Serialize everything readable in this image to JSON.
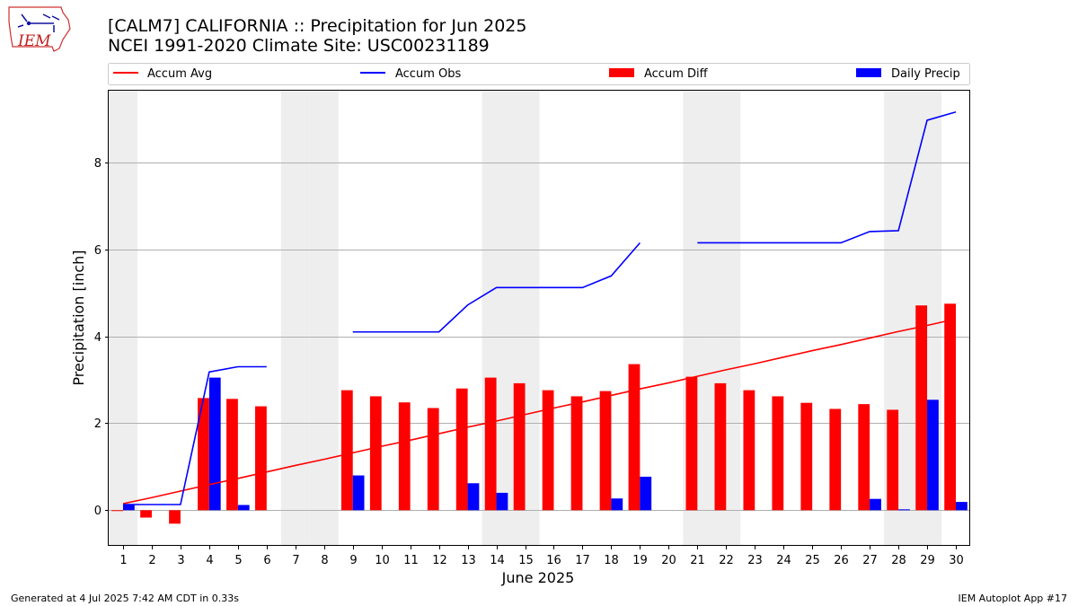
{
  "logo": {
    "text": "IEM"
  },
  "footer": {
    "left": "Generated at 4 Jul 2025 7:42 AM CDT in 0.33s",
    "right": "IEM Autoplot App #17"
  },
  "chart_data": {
    "type": "bar",
    "title": "[CALM7] CALIFORNIA :: Precipitation for Jun 2025",
    "subtitle": "NCEI 1991-2020 Climate Site: USC00231189",
    "xlabel": "June 2025",
    "ylabel": "Precipitation [inch]",
    "xlim": [
      0.5,
      30.5
    ],
    "ylim": [
      -0.82,
      9.65
    ],
    "yticks": [
      0,
      2,
      4,
      6,
      8
    ],
    "grid": "y",
    "legend_location": "top",
    "colors": {
      "accum_avg": "#ff0000",
      "accum_obs": "#0000ff",
      "accum_diff": "#ff0000",
      "daily_precip": "#0000ff",
      "weekend_shade": "#eeeeee"
    },
    "legend": [
      "Accum Avg",
      "Accum Obs",
      "Accum Diff",
      "Daily Precip"
    ],
    "weekend_days": [
      1,
      7,
      8,
      14,
      15,
      21,
      22,
      28,
      29
    ],
    "days": [
      1,
      2,
      3,
      4,
      5,
      6,
      7,
      8,
      9,
      10,
      11,
      12,
      13,
      14,
      15,
      16,
      17,
      18,
      19,
      20,
      21,
      22,
      23,
      24,
      25,
      26,
      27,
      28,
      29,
      30
    ],
    "series": [
      {
        "name": "Accum Avg",
        "kind": "line",
        "values": [
          0.15,
          0.29,
          0.44,
          0.59,
          0.73,
          0.88,
          1.03,
          1.17,
          1.32,
          1.47,
          1.61,
          1.76,
          1.91,
          2.05,
          2.2,
          2.35,
          2.49,
          2.64,
          2.79,
          2.93,
          3.08,
          3.23,
          3.37,
          3.52,
          3.67,
          3.81,
          3.96,
          4.11,
          4.25,
          4.4
        ]
      },
      {
        "name": "Accum Obs",
        "kind": "line",
        "values": [
          0.13,
          0.13,
          0.13,
          3.18,
          3.3,
          3.3,
          null,
          null,
          4.1,
          4.1,
          4.1,
          4.1,
          4.72,
          5.12,
          5.12,
          5.12,
          5.12,
          5.39,
          6.15,
          null,
          6.15,
          6.15,
          6.15,
          6.15,
          6.15,
          6.15,
          6.41,
          6.43,
          8.97,
          9.16
        ]
      },
      {
        "name": "Accum Diff",
        "kind": "bar",
        "values": [
          -0.02,
          -0.17,
          -0.31,
          2.58,
          2.56,
          2.39,
          null,
          null,
          2.76,
          2.62,
          2.48,
          2.35,
          2.8,
          3.05,
          2.92,
          2.76,
          2.62,
          2.74,
          3.36,
          null,
          3.07,
          2.92,
          2.76,
          2.62,
          2.47,
          2.33,
          2.44,
          2.31,
          4.71,
          4.75
        ]
      },
      {
        "name": "Daily Precip",
        "kind": "bar",
        "values": [
          0.13,
          0,
          0,
          3.05,
          0.12,
          0,
          null,
          null,
          0.8,
          0,
          0,
          0,
          0.62,
          0.4,
          0,
          0,
          0,
          0.27,
          0.77,
          null,
          0,
          0,
          0,
          0,
          0,
          0,
          0.26,
          0.02,
          2.54,
          0.19
        ]
      }
    ]
  }
}
